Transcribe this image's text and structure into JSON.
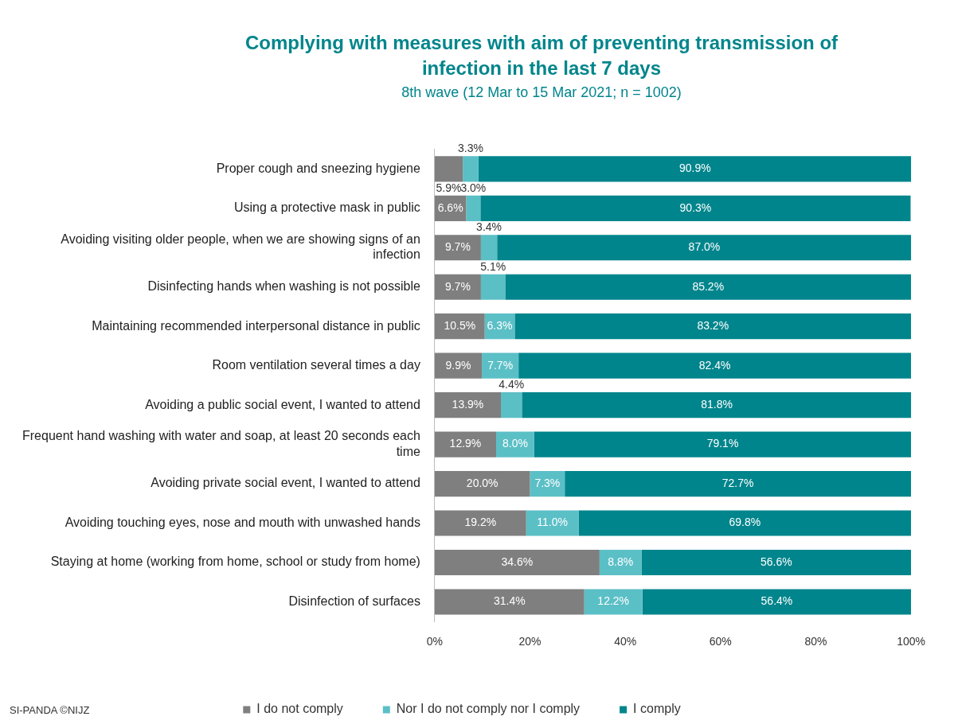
{
  "chart_data": {
    "type": "bar",
    "orientation": "horizontal",
    "stacked": true,
    "title": "Complying with measures with aim of preventing transmission of infection in the last 7 days",
    "subtitle": "8th wave (12 Mar to 15 Mar 2021; n = 1002)",
    "categories": [
      "Proper cough and sneezing hygiene",
      "Using a protective mask in public",
      "Avoiding visiting older people, when we are showing signs of an infection",
      "Disinfecting hands when washing is not possible",
      "Maintaining recommended interpersonal distance in public",
      "Room ventilation several times a day",
      "Avoiding a public social event, I wanted to attend",
      "Frequent hand washing with water and soap, at least 20 seconds each time",
      "Avoiding private social event, I wanted to attend",
      "Avoiding touching eyes, nose and mouth with unwashed hands",
      "Staying at home (working from home, school or study from home)",
      "Disinfection of surfaces"
    ],
    "series": [
      {
        "name": "I do not comply",
        "color": "#7f7f7f",
        "values": [
          5.9,
          6.6,
          9.7,
          9.7,
          10.5,
          9.9,
          13.9,
          12.9,
          20.0,
          19.2,
          34.6,
          31.4
        ],
        "value_labels": [
          "5.9%",
          "6.6%",
          "9.7%",
          "9.7%",
          "10.5%",
          "9.9%",
          "13.9%",
          "12.9%",
          "20.0%",
          "19.2%",
          "34.6%",
          "31.4%"
        ]
      },
      {
        "name": "Nor I do not comply nor I comply",
        "color": "#5bbfc6",
        "values": [
          3.3,
          3.0,
          3.4,
          5.1,
          6.3,
          7.7,
          4.4,
          8.0,
          7.3,
          11.0,
          8.8,
          12.2
        ],
        "value_labels": [
          "3.3%",
          "3.0%",
          "3.4%",
          "5.1%",
          "6.3%",
          "7.7%",
          "4.4%",
          "8.0%",
          "7.3%",
          "11.0%",
          "8.8%",
          "12.2%"
        ]
      },
      {
        "name": "I comply",
        "color": "#00858c",
        "values": [
          90.9,
          90.3,
          87.0,
          85.2,
          83.2,
          82.4,
          81.8,
          79.1,
          72.7,
          69.8,
          56.6,
          56.4
        ],
        "value_labels": [
          "90.9%",
          "90.3%",
          "87.0%",
          "85.2%",
          "83.2%",
          "82.4%",
          "81.8%",
          "79.1%",
          "72.7%",
          "69.8%",
          "56.6%",
          "56.4%"
        ]
      }
    ],
    "xlim": [
      0,
      100
    ],
    "xticks": [
      {
        "value": 0,
        "label": "0%"
      },
      {
        "value": 20,
        "label": "20%"
      },
      {
        "value": 40,
        "label": "40%"
      },
      {
        "value": 60,
        "label": "60%"
      },
      {
        "value": 80,
        "label": "80%"
      },
      {
        "value": 100,
        "label": "100%"
      }
    ],
    "grid": false,
    "legend": "bottom",
    "annotations": [
      "SI-PANDA ©NIJZ"
    ]
  }
}
